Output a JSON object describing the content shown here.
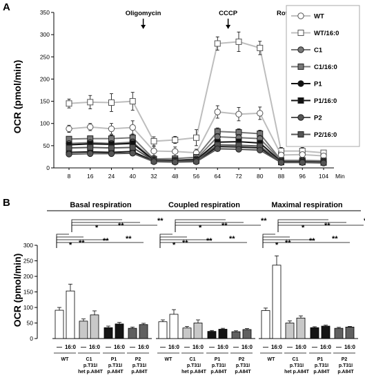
{
  "panels": {
    "a": "A",
    "b": "B"
  },
  "panel_a": {
    "ylabel": "OCR (pmol/min)",
    "xunit": "Min",
    "annotations": [
      {
        "label": "Oligomycin",
        "x": 40
      },
      {
        "label": "CCCP",
        "x": 64
      },
      {
        "label": "Rotenone",
        "x": 88
      }
    ],
    "legend": [
      "WT",
      "WT/16:0",
      "C1",
      "C1/16:0",
      "P1",
      "P1/16:0",
      "P2",
      "P2/16:0"
    ]
  },
  "panel_b": {
    "ylabel": "OCR (pmol/min)",
    "group_titles": [
      "Basal respiration",
      "Coupled respiration",
      "Maximal respiration"
    ],
    "cond_labels": [
      "—",
      "16:0"
    ],
    "cat_top": [
      "WT",
      "C1",
      "P1",
      "P2"
    ],
    "cat_bottom": [
      "",
      "p.T31I",
      "p.T31I",
      "p.T31I"
    ],
    "cat_bottom2": [
      "",
      "het p.A84T",
      "p.A84T",
      "p.A84T"
    ],
    "sig_top": [
      "**",
      "*",
      "**"
    ],
    "sig_bottom": [
      "*",
      "**",
      "**",
      "**"
    ]
  },
  "chart_data": [
    {
      "type": "line",
      "ylabel": "OCR (pmol/min)",
      "xlabel": "Min",
      "x": [
        8,
        16,
        24,
        40,
        32,
        48,
        56,
        64,
        72,
        80,
        88,
        96,
        104
      ],
      "x_tick_labels": [
        "8",
        "16",
        "24",
        "40",
        "32",
        "48",
        "56",
        "64",
        "72",
        "80",
        "88",
        "96",
        "104"
      ],
      "ylim": [
        0,
        350
      ],
      "yticks": [
        0,
        50,
        100,
        150,
        200,
        250,
        300,
        350
      ],
      "series": [
        {
          "name": "WT/16:0",
          "marker": "open-square",
          "line_color": "#bdbdbd",
          "fill": "#ffffff",
          "values": [
            145,
            148,
            147,
            150,
            60,
            63,
            68,
            280,
            284,
            270,
            38,
            38,
            34
          ],
          "errors": [
            10,
            15,
            20,
            20,
            10,
            8,
            18,
            15,
            22,
            15,
            8,
            8,
            5
          ]
        },
        {
          "name": "WT",
          "marker": "open-circle",
          "line_color": "#bdbdbd",
          "fill": "#ffffff",
          "values": [
            88,
            92,
            88,
            91,
            38,
            37,
            34,
            126,
            121,
            123,
            29,
            30,
            27
          ],
          "errors": [
            8,
            8,
            12,
            15,
            10,
            10,
            8,
            14,
            15,
            14,
            6,
            6,
            4
          ]
        },
        {
          "name": "C1/16:0",
          "marker": "square",
          "line_color": "#777777",
          "fill": "#777777",
          "values": [
            65,
            66,
            66,
            68,
            20,
            21,
            24,
            82,
            80,
            77,
            17,
            17,
            16
          ],
          "errors": [
            5,
            6,
            8,
            8,
            6,
            5,
            5,
            8,
            8,
            8,
            3,
            3,
            3
          ]
        },
        {
          "name": "C1",
          "marker": "circle",
          "line_color": "#777777",
          "fill": "#777777",
          "values": [
            55,
            57,
            55,
            58,
            18,
            17,
            20,
            70,
            68,
            66,
            16,
            16,
            15
          ],
          "errors": [
            5,
            5,
            6,
            7,
            5,
            5,
            4,
            7,
            7,
            7,
            3,
            3,
            3
          ]
        },
        {
          "name": "P1/16:0",
          "marker": "square",
          "line_color": "#111111",
          "fill": "#111111",
          "values": [
            52,
            54,
            53,
            55,
            17,
            17,
            18,
            58,
            59,
            56,
            14,
            14,
            13
          ],
          "errors": [
            4,
            4,
            5,
            5,
            4,
            4,
            4,
            5,
            5,
            5,
            2,
            2,
            2
          ]
        },
        {
          "name": "P1",
          "marker": "circle",
          "line_color": "#111111",
          "fill": "#111111",
          "values": [
            35,
            36,
            35,
            37,
            15,
            14,
            15,
            48,
            47,
            45,
            13,
            13,
            12
          ],
          "errors": [
            3,
            3,
            4,
            4,
            3,
            3,
            3,
            4,
            4,
            4,
            2,
            2,
            2
          ]
        },
        {
          "name": "P2/16:0",
          "marker": "square",
          "line_color": "#555555",
          "fill": "#555555",
          "values": [
            45,
            46,
            45,
            46,
            16,
            15,
            16,
            52,
            51,
            49,
            13,
            13,
            12
          ],
          "errors": [
            4,
            4,
            4,
            5,
            3,
            3,
            3,
            5,
            5,
            5,
            2,
            2,
            2
          ]
        },
        {
          "name": "P2",
          "marker": "circle",
          "line_color": "#555555",
          "fill": "#555555",
          "values": [
            31,
            32,
            32,
            33,
            14,
            13,
            14,
            43,
            42,
            40,
            12,
            12,
            11
          ],
          "errors": [
            3,
            3,
            3,
            3,
            3,
            3,
            3,
            4,
            4,
            4,
            2,
            2,
            2
          ]
        }
      ]
    },
    {
      "type": "bar",
      "ylabel": "OCR (pmol/min)",
      "ylim": [
        0,
        300
      ],
      "yticks": [
        0,
        50,
        100,
        150,
        200,
        250,
        300
      ],
      "categories": [
        "WT —",
        "WT 16:0",
        "C1 —",
        "C1 16:0",
        "P1 —",
        "P1 16:0",
        "P2 —",
        "P2 16:0"
      ],
      "bar_colors": [
        "#ffffff",
        "#ffffff",
        "#c8c8c8",
        "#c8c8c8",
        "#151515",
        "#151515",
        "#606060",
        "#606060"
      ],
      "groups": [
        {
          "title": "Basal respiration",
          "values": [
            91,
            153,
            56,
            76,
            35,
            47,
            33,
            45
          ],
          "errors": [
            9,
            22,
            7,
            13,
            5,
            5,
            4,
            4
          ]
        },
        {
          "title": "Coupled respiration",
          "values": [
            54,
            78,
            34,
            50,
            23,
            30,
            22,
            29
          ],
          "errors": [
            6,
            15,
            5,
            10,
            3,
            3,
            3,
            3
          ]
        },
        {
          "title": "Maximal respiration",
          "values": [
            90,
            236,
            50,
            66,
            35,
            40,
            33,
            37
          ],
          "errors": [
            8,
            30,
            7,
            7,
            3,
            3,
            3,
            2
          ]
        }
      ]
    }
  ]
}
